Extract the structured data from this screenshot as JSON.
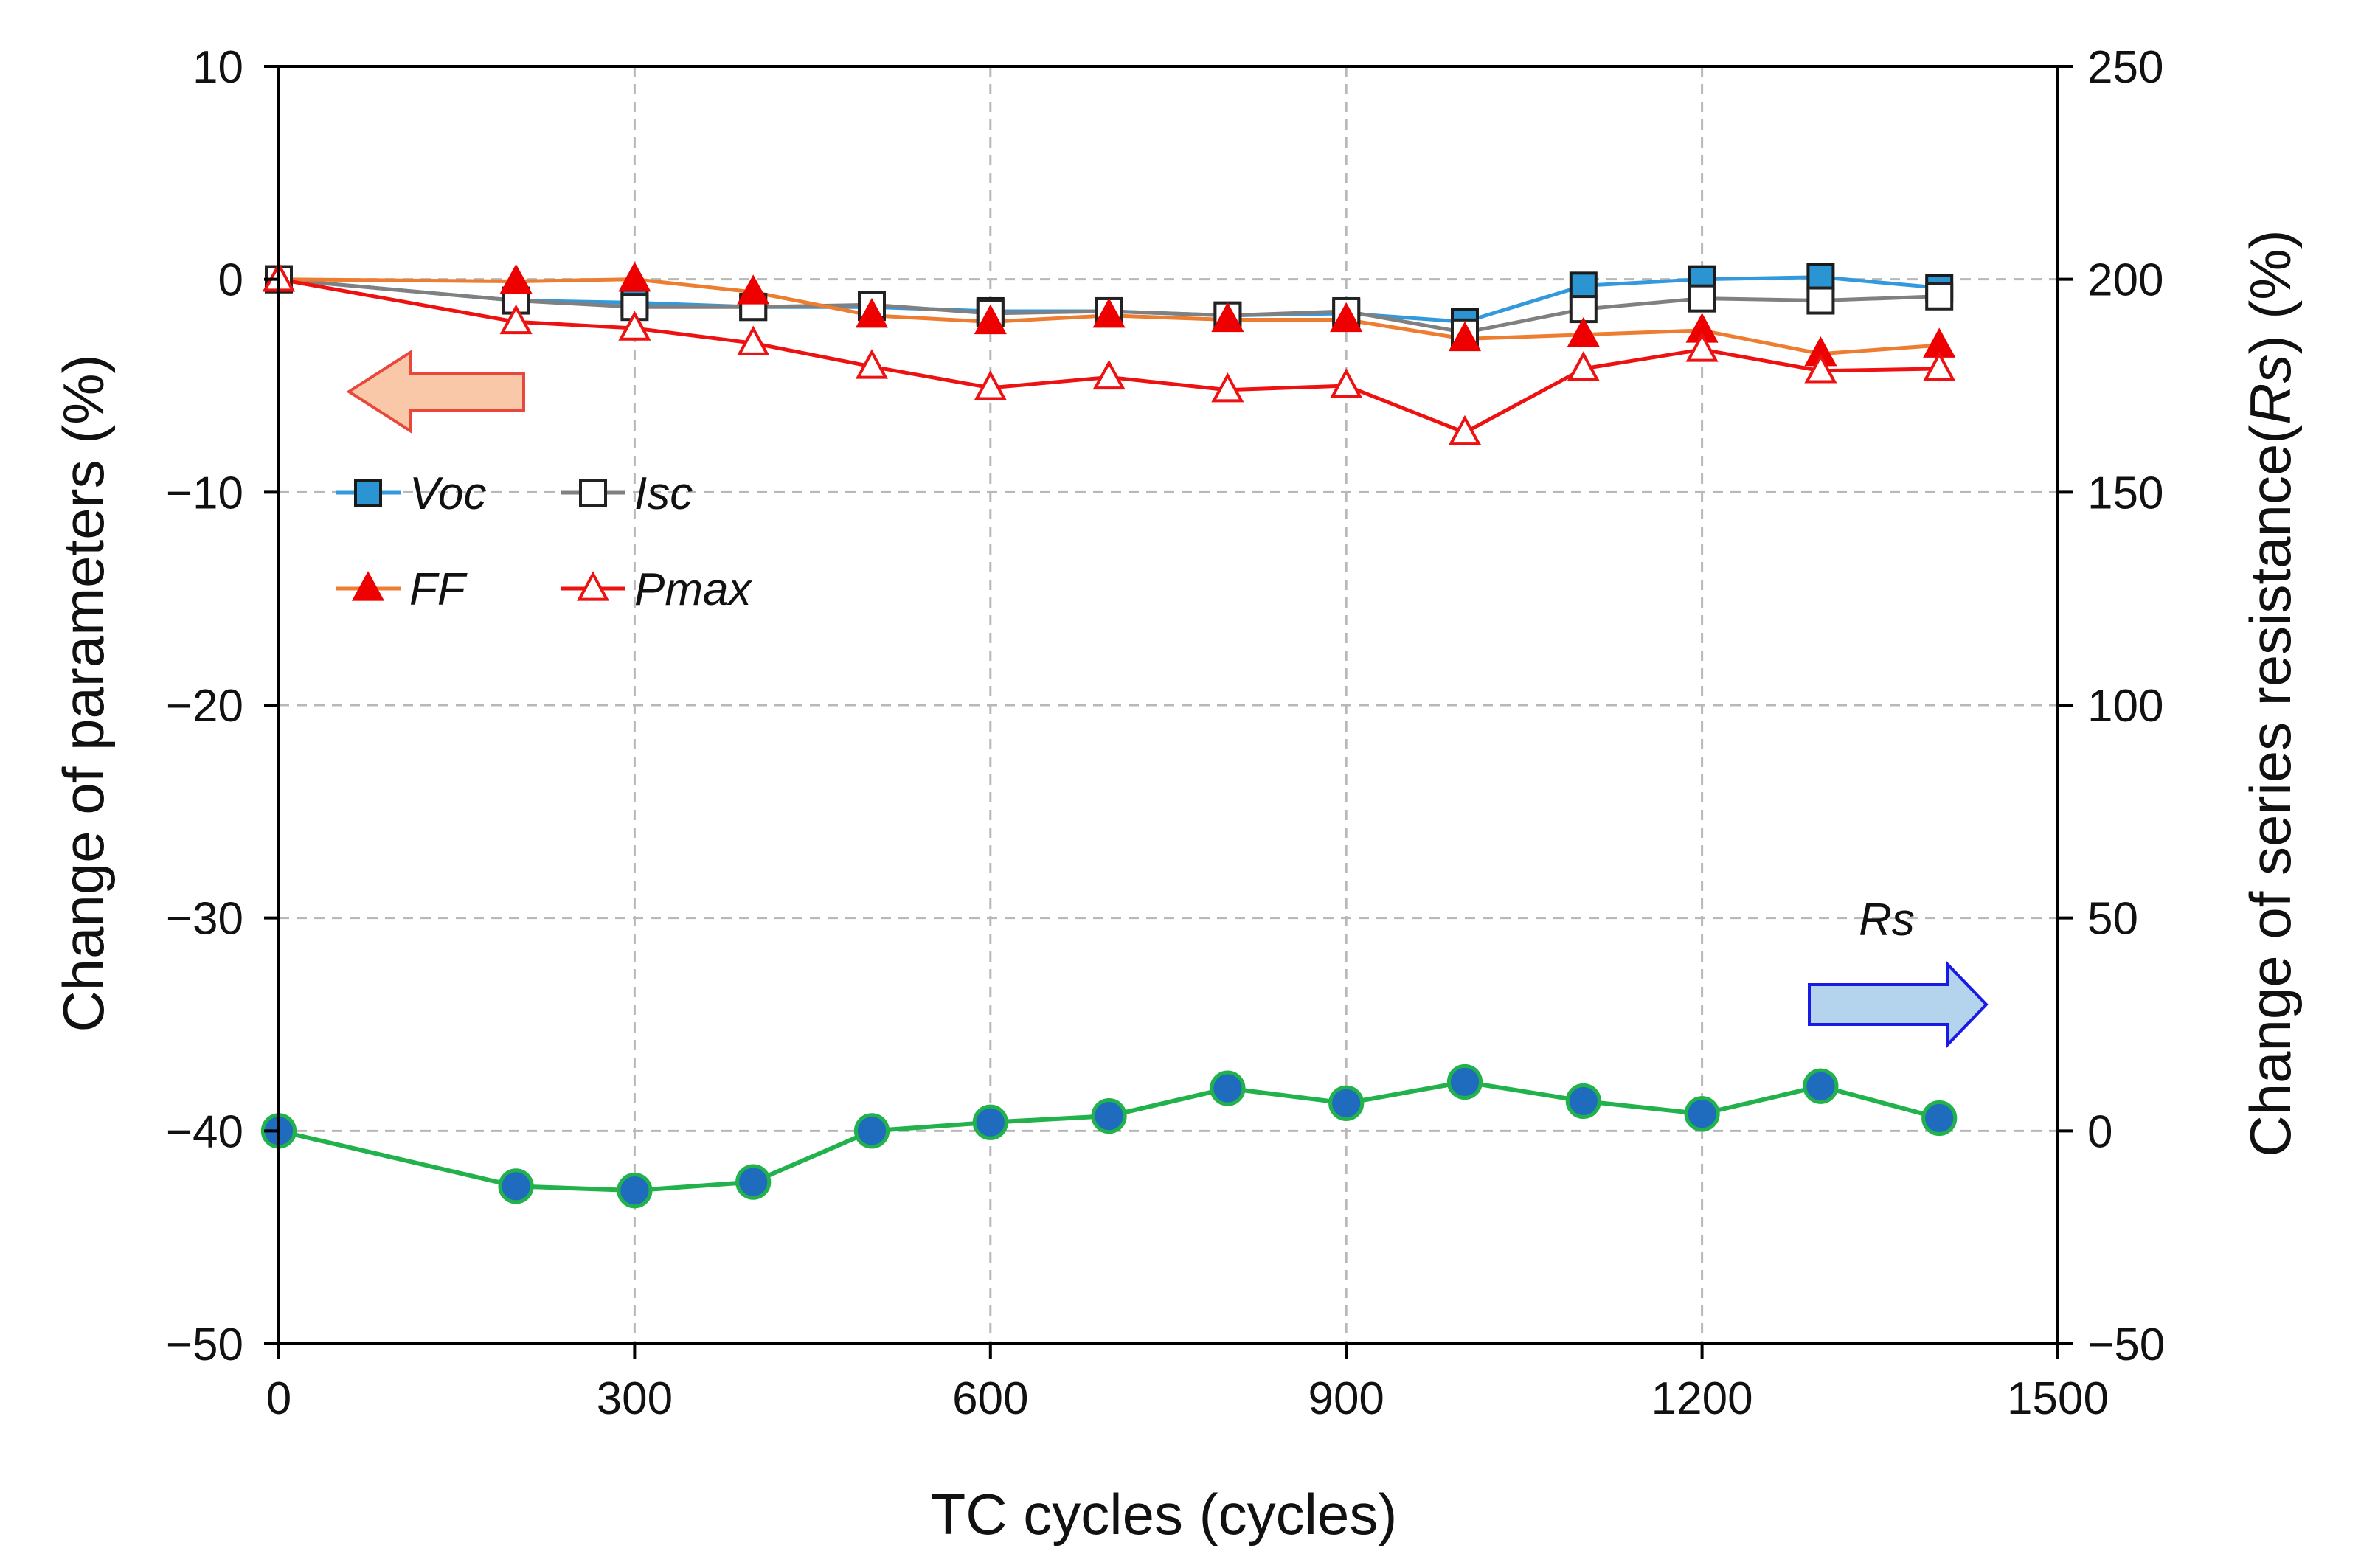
{
  "chart_data": {
    "type": "line",
    "title": "",
    "xlabel": "TC cycles (cycles)",
    "ylabel_left": "Change of parameters (%)",
    "ylabel_right_prefix": "Change of series resistance(",
    "ylabel_right_italic": "Rs",
    "ylabel_right_suffix": ") (%)",
    "xlim": [
      0,
      1500
    ],
    "ylim_left": [
      -50,
      10
    ],
    "ylim_right": [
      -50,
      250
    ],
    "x_ticks": [
      "0",
      "300",
      "600",
      "900",
      "1200",
      "1500"
    ],
    "y_left_ticks": [
      "10",
      "0",
      "−10",
      "−20",
      "−30",
      "−40",
      "−50"
    ],
    "y_right_ticks": [
      "250",
      "200",
      "150",
      "100",
      "50",
      "0",
      "−50"
    ],
    "grid": "dashed",
    "legend_position": "upper-left",
    "x": [
      0,
      200,
      300,
      400,
      500,
      600,
      700,
      800,
      900,
      1000,
      1100,
      1200,
      1300,
      1400
    ],
    "series": [
      {
        "name": "Voc",
        "axis": "left",
        "color": "#3399dd",
        "marker": "square-filled",
        "marker_color": "#2b95d4",
        "values": [
          0,
          -1.0,
          -1.1,
          -1.3,
          -1.3,
          -1.5,
          -1.5,
          -1.7,
          -1.6,
          -2.0,
          -0.3,
          0,
          0.1,
          -0.4
        ]
      },
      {
        "name": "Isc",
        "axis": "left",
        "color": "#808080",
        "marker": "square-open",
        "marker_color": "#222222",
        "values": [
          0,
          -1.0,
          -1.3,
          -1.3,
          -1.2,
          -1.6,
          -1.5,
          -1.7,
          -1.5,
          -2.5,
          -1.4,
          -0.9,
          -1.0,
          -0.8
        ]
      },
      {
        "name": "FF",
        "axis": "left",
        "color": "#ed7d31",
        "marker": "triangle-filled",
        "marker_color": "#ee0000",
        "values": [
          0,
          -0.1,
          0,
          -0.6,
          -1.7,
          -2.0,
          -1.7,
          -1.9,
          -1.9,
          -2.8,
          -2.6,
          -2.4,
          -3.5,
          -3.1
        ]
      },
      {
        "name": "Pmax",
        "axis": "left",
        "color": "#ee1111",
        "marker": "triangle-open",
        "marker_color": "#ee1111",
        "values": [
          0,
          -2.0,
          -2.3,
          -3.0,
          -4.1,
          -5.1,
          -4.6,
          -5.2,
          -5.0,
          -7.2,
          -4.2,
          -3.3,
          -4.3,
          -4.2
        ]
      },
      {
        "name": "Rs",
        "axis": "right",
        "color": "#22b24c",
        "marker": "circle-filled",
        "marker_color": "#1f6cbf",
        "values": [
          0,
          -13,
          -14,
          -12,
          0,
          2,
          3.5,
          10,
          6.5,
          11.5,
          7,
          4,
          10.5,
          3
        ]
      }
    ],
    "legend": [
      "Voc",
      "Isc",
      "FF",
      "Pmax"
    ],
    "annotations": {
      "left_arrow_color": "#f8c8a8",
      "left_arrow_border": "#e8473b",
      "right_arrow_color": "#b4d4ee",
      "right_arrow_border": "#1a1ae6",
      "rs_label": "Rs"
    }
  }
}
